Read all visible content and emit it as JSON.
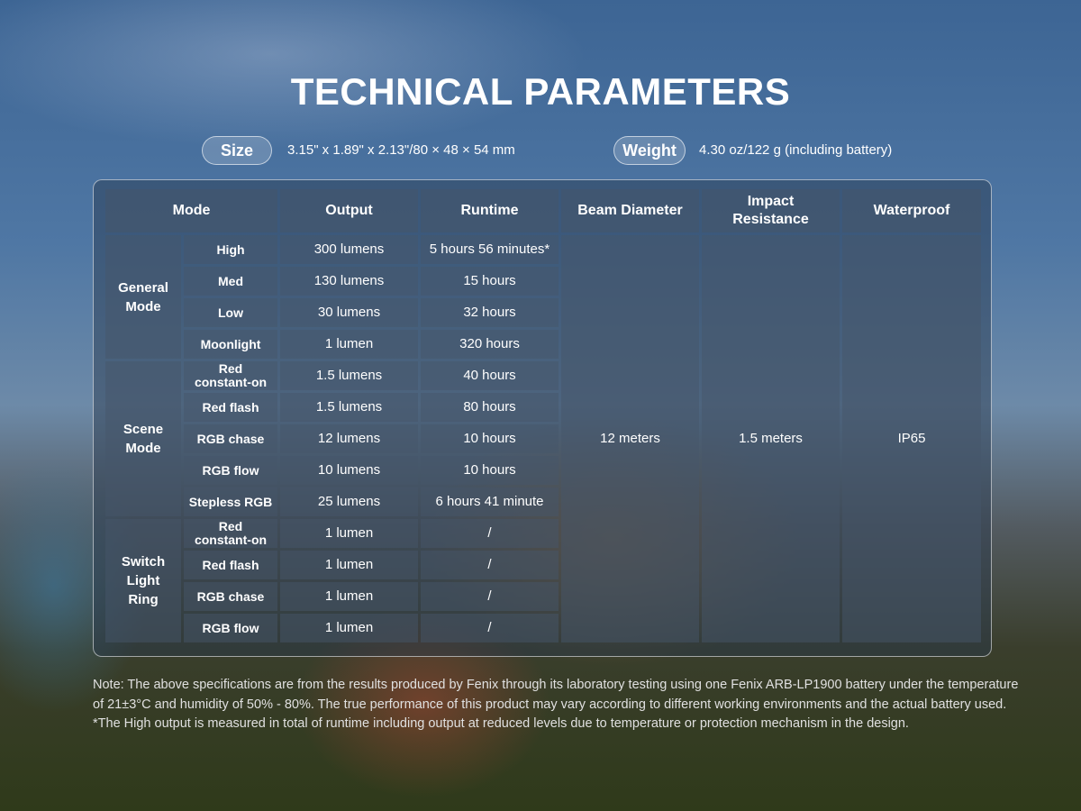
{
  "title": "TECHNICAL PARAMETERS",
  "size": {
    "label": "Size",
    "value": "3.15\" x 1.89\" x 2.13\"/80 × 48 × 54 mm"
  },
  "weight": {
    "label": "Weight",
    "value": "4.30 oz/122 g (including battery)"
  },
  "table": {
    "headers": [
      "Mode",
      "Output",
      "Runtime",
      "Beam Diameter",
      "Impact Resistance",
      "Waterproof"
    ],
    "groups": [
      "General Mode",
      "Scene Mode",
      "Switch Light Ring"
    ],
    "rows": [
      {
        "mode": "High",
        "output": "300 lumens",
        "runtime": "5 hours 56 minutes*"
      },
      {
        "mode": "Med",
        "output": "130 lumens",
        "runtime": "15 hours"
      },
      {
        "mode": "Low",
        "output": "30 lumens",
        "runtime": "32 hours"
      },
      {
        "mode": "Moonlight",
        "output": "1 lumen",
        "runtime": "320 hours"
      },
      {
        "mode": "Red constant-on",
        "output": "1.5 lumens",
        "runtime": "40 hours"
      },
      {
        "mode": "Red flash",
        "output": "1.5 lumens",
        "runtime": "80 hours"
      },
      {
        "mode": "RGB chase",
        "output": "12 lumens",
        "runtime": "10 hours"
      },
      {
        "mode": "RGB flow",
        "output": "10 lumens",
        "runtime": "10 hours"
      },
      {
        "mode": "Stepless RGB",
        "output": "25 lumens",
        "runtime": "6 hours 41 minute"
      },
      {
        "mode": "Red constant-on",
        "output": "1 lumen",
        "runtime": "/"
      },
      {
        "mode": "Red flash",
        "output": "1 lumen",
        "runtime": "/"
      },
      {
        "mode": "RGB chase",
        "output": "1 lumen",
        "runtime": "/"
      },
      {
        "mode": "RGB flow",
        "output": "1 lumen",
        "runtime": "/"
      }
    ],
    "beam_diameter": "12 meters",
    "impact_resistance": "1.5 meters",
    "waterproof": "IP65"
  },
  "notes": [
    "Note: The above specifications are from the results produced by Fenix through its laboratory testing using one Fenix ARB-LP1900 battery under the temperature of 21±3°C and humidity of 50% - 80%. The true performance of this product may vary according to different working environments and the actual battery used.",
    "*The High output is measured in total of runtime including output at reduced levels due to temperature or protection mechanism in the design."
  ]
}
